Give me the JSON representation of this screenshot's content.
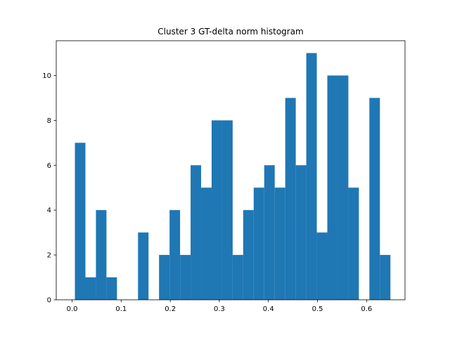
{
  "chart_data": {
    "type": "bar",
    "title": "Cluster 3 GT-delta norm histogram",
    "xlabel": "",
    "ylabel": "",
    "bar_color": "#1f77b4",
    "xlim": [
      -0.0323,
      0.6783
    ],
    "ylim": [
      0,
      11.55
    ],
    "bin_start": 0.0057,
    "bin_width": 0.02143,
    "values": [
      7,
      1,
      4,
      1,
      0,
      0,
      3,
      0,
      2,
      4,
      2,
      6,
      5,
      8,
      8,
      2,
      4,
      5,
      6,
      5,
      9,
      6,
      11,
      3,
      10,
      10,
      5,
      0,
      9,
      2
    ],
    "xticks": [
      0.0,
      0.1,
      0.2,
      0.3,
      0.4,
      0.5,
      0.6
    ],
    "xtick_labels": [
      "0.0",
      "0.1",
      "0.2",
      "0.3",
      "0.4",
      "0.5",
      "0.6"
    ],
    "yticks": [
      0,
      2,
      4,
      6,
      8,
      10
    ],
    "ytick_labels": [
      "0",
      "2",
      "4",
      "6",
      "8",
      "10"
    ]
  }
}
